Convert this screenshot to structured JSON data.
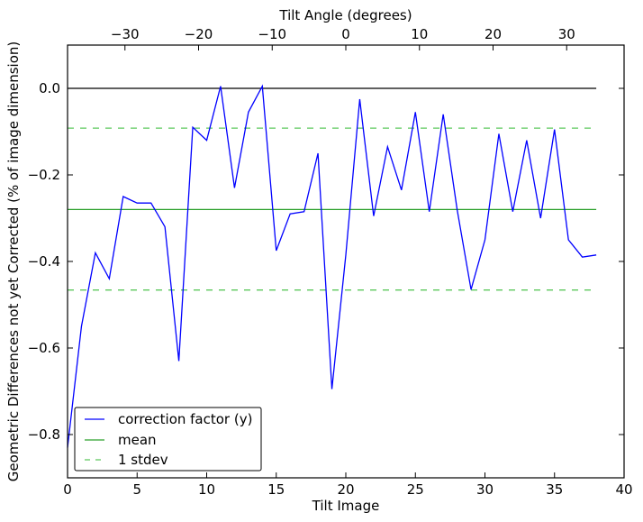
{
  "chart_data": {
    "type": "line",
    "xlabel": "Tilt Image",
    "ylabel": "Geometric Differences not yet Corrected (% of image dimension)",
    "top_xlabel": "Tilt Angle (degrees)",
    "xlim": [
      0,
      40
    ],
    "ylim": [
      -0.9,
      0.1
    ],
    "top_xlim": [
      -37.8,
      37.8
    ],
    "xticks": [
      0,
      5,
      10,
      15,
      20,
      25,
      30,
      35,
      40
    ],
    "yticks": [
      0.0,
      -0.2,
      -0.4,
      -0.6,
      -0.8
    ],
    "ytick_labels": [
      "0.0",
      "−0.2",
      "−0.4",
      "−0.6",
      "−0.8"
    ],
    "top_xticks": [
      -30,
      -20,
      -10,
      0,
      10,
      20,
      30
    ],
    "top_xtick_labels": [
      "−30",
      "−20",
      "−10",
      "0",
      "10",
      "20",
      "30"
    ],
    "grid": false,
    "legend_position": "bottom-left",
    "series": [
      {
        "name": "correction factor (y)",
        "color": "#0000ff",
        "style": "solid",
        "x": [
          0,
          1,
          2,
          3,
          4,
          5,
          6,
          7,
          8,
          9,
          10,
          11,
          12,
          13,
          14,
          15,
          16,
          17,
          18,
          19,
          20,
          21,
          22,
          23,
          24,
          25,
          26,
          27,
          28,
          29,
          30,
          31,
          32,
          33,
          34,
          35,
          36,
          37,
          38
        ],
        "values": [
          -0.83,
          -0.55,
          -0.38,
          -0.44,
          -0.25,
          -0.265,
          -0.265,
          -0.32,
          -0.63,
          -0.09,
          -0.12,
          0.005,
          -0.23,
          -0.055,
          0.005,
          -0.375,
          -0.29,
          -0.285,
          -0.15,
          -0.695,
          -0.385,
          -0.025,
          -0.295,
          -0.135,
          -0.235,
          -0.055,
          -0.285,
          -0.06,
          -0.28,
          -0.465,
          -0.35,
          -0.105,
          -0.285,
          -0.12,
          -0.3,
          -0.095,
          -0.35,
          -0.39,
          -0.385
        ]
      },
      {
        "name": "mean",
        "color": "#2ca02c",
        "style": "solid",
        "x": [
          0,
          38
        ],
        "values": [
          -0.28,
          -0.28
        ]
      },
      {
        "name": "1 stdev",
        "color": "#5cc85c",
        "style": "dashed",
        "x": [
          0,
          38
        ],
        "values": [
          -0.092,
          -0.092
        ],
        "lower_values": [
          -0.466,
          -0.466
        ]
      }
    ],
    "zero_line": {
      "color": "#000000",
      "x": [
        0,
        38
      ],
      "value": 0.0
    }
  }
}
